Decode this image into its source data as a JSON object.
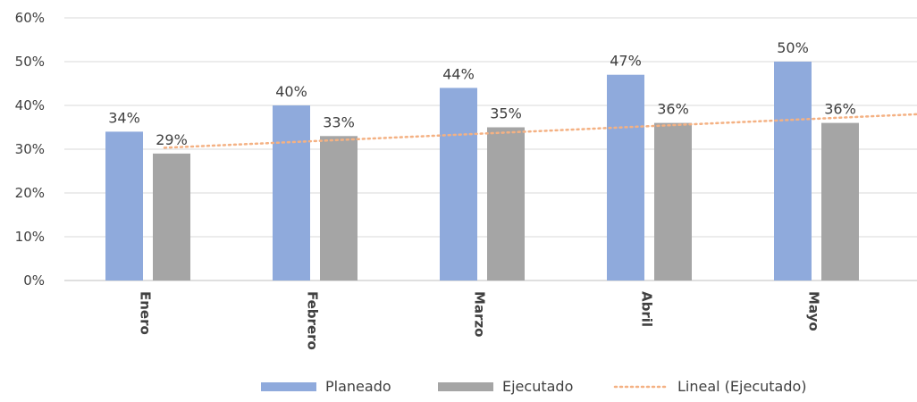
{
  "chart_data": {
    "type": "bar",
    "categories": [
      "Enero",
      "Febrero",
      "Marzo",
      "Abril",
      "Mayo"
    ],
    "series": [
      {
        "name": "Planeado",
        "values": [
          34,
          40,
          44,
          47,
          50
        ],
        "labels": [
          "34%",
          "40%",
          "44%",
          "47%",
          "50%"
        ],
        "color": "#8faadc"
      },
      {
        "name": "Ejecutado",
        "values": [
          29,
          33,
          35,
          36,
          36
        ],
        "labels": [
          "29%",
          "33%",
          "35%",
          "36%",
          "36%"
        ],
        "color": "#a5a5a5"
      }
    ],
    "trendline": {
      "name": "Lineal (Ejecutado)",
      "of_series": "Ejecutado",
      "type": "linear",
      "color": "#f4b183",
      "style": "dotted"
    },
    "ylim": [
      0,
      60
    ],
    "yticks": [
      0,
      10,
      20,
      30,
      40,
      50,
      60
    ],
    "ytick_labels": [
      "0%",
      "10%",
      "20%",
      "30%",
      "40%",
      "50%",
      "60%"
    ],
    "ylabel_format": "percent",
    "category_label_rotation": "vertical",
    "grid": true,
    "legend_position": "bottom-right",
    "title": "",
    "xlabel": "",
    "ylabel": ""
  }
}
